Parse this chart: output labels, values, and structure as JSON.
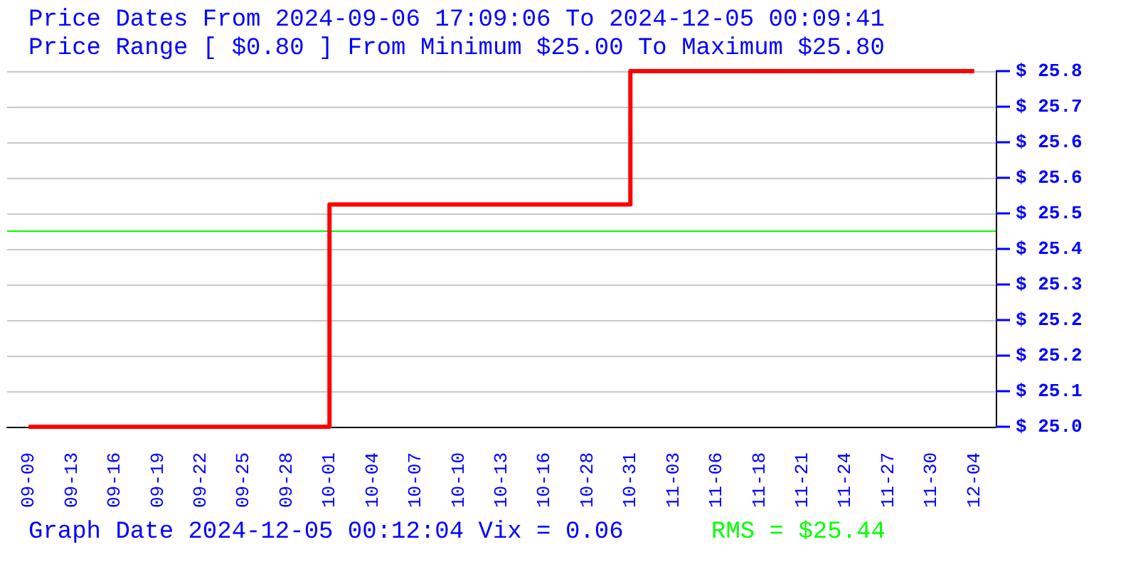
{
  "chart_data": {
    "type": "step",
    "title": "Price Dates From 2024-09-06 17:09:06 To 2024-12-05 00:09:41",
    "subtitle": "Price Range [ $0.80 ] From Minimum $25.00 To Maximum $25.80",
    "categories": [
      "09-09",
      "09-13",
      "09-16",
      "09-19",
      "09-22",
      "09-25",
      "09-28",
      "10-01",
      "10-04",
      "10-07",
      "10-10",
      "10-13",
      "10-16",
      "10-28",
      "10-31",
      "11-03",
      "11-06",
      "11-18",
      "11-21",
      "11-24",
      "11-27",
      "11-30",
      "12-04"
    ],
    "series": [
      {
        "color": "#ff0000",
        "values": [
          25.0,
          25.0,
          25.0,
          25.0,
          25.0,
          25.0,
          25.0,
          25.5,
          25.5,
          25.5,
          25.5,
          25.5,
          25.5,
          25.5,
          25.8,
          25.8,
          25.8,
          25.8,
          25.8,
          25.8,
          25.8,
          25.8,
          25.8
        ]
      }
    ],
    "ylim": [
      25.0,
      25.8
    ],
    "yticks": [
      {
        "value": 25.0,
        "label": "$ 25.0"
      },
      {
        "value": 25.08,
        "label": "$ 25.1"
      },
      {
        "value": 25.16,
        "label": "$ 25.2"
      },
      {
        "value": 25.24,
        "label": "$ 25.2"
      },
      {
        "value": 25.32,
        "label": "$ 25.3"
      },
      {
        "value": 25.4,
        "label": "$ 25.4"
      },
      {
        "value": 25.48,
        "label": "$ 25.5"
      },
      {
        "value": 25.56,
        "label": "$ 25.6"
      },
      {
        "value": 25.64,
        "label": "$ 25.6"
      },
      {
        "value": 25.72,
        "label": "$ 25.7"
      },
      {
        "value": 25.8,
        "label": "$ 25.8"
      }
    ],
    "ref_lines": [
      {
        "axis": "y",
        "value": 25.44,
        "label": "RMS = $25.44",
        "color": "#00ff00"
      }
    ],
    "annotations": [
      "Graph Date 2024-12-05 00:12:04 Vix = 0.06"
    ],
    "grid": "y",
    "marker": "none",
    "line_style": "solid"
  }
}
